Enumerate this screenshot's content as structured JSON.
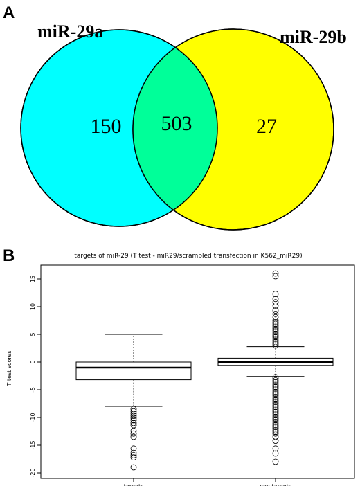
{
  "panels": {
    "a_letter": "A",
    "b_letter": "B"
  },
  "venn": {
    "set_a": {
      "label": "miR-29a",
      "only_count": "150",
      "color": "#00ffff"
    },
    "set_b": {
      "label": "miR-29b",
      "only_count": "27",
      "color": "#ffff00"
    },
    "overlap": {
      "count": "503",
      "color": "#00ff99"
    }
  },
  "chart_data": {
    "type": "boxplot",
    "title": "targets of miR-29 (T test - miR29/scrambled transfection in K562_miR29)",
    "xlabel": "",
    "ylabel": "T test scores",
    "ylim": [
      -20.5,
      17
    ],
    "yticks": [
      -20,
      -15,
      -10,
      -5,
      0,
      5,
      10,
      15
    ],
    "categories": [
      "targets",
      "non targets"
    ],
    "boxes": [
      {
        "name": "targets",
        "whisker_low": -8,
        "q1": -3.2,
        "median": -1,
        "q3": 0,
        "whisker_high": 5,
        "outliers": [
          -8.5,
          -8.9,
          -9.3,
          -9.7,
          -10.1,
          -10.5,
          -11,
          -11.4,
          -12.4,
          -12.9,
          -13.5,
          -15.6,
          -16.4,
          -16.8,
          -17.2,
          -19
        ]
      },
      {
        "name": "non targets",
        "whisker_low": -2.6,
        "q1": -0.6,
        "median": 0,
        "q3": 0.7,
        "whisker_high": 2.8,
        "outliers_high": [
          3,
          3.3,
          3.6,
          3.9,
          4.2,
          4.5,
          4.8,
          5.1,
          5.4,
          5.7,
          6,
          6.3,
          6.6,
          6.9,
          7.2,
          7.5,
          8.1,
          8.7,
          9.3,
          10.2,
          10.8,
          11.4,
          12.3,
          15.5,
          16
        ],
        "outliers_low": [
          -2.7,
          -3,
          -3.3,
          -3.6,
          -3.9,
          -4.2,
          -4.5,
          -4.8,
          -5.1,
          -5.4,
          -5.7,
          -6,
          -6.3,
          -6.6,
          -6.9,
          -7.2,
          -7.5,
          -7.8,
          -8.1,
          -8.4,
          -8.7,
          -9,
          -9.3,
          -9.6,
          -9.9,
          -10.2,
          -10.5,
          -10.8,
          -11.1,
          -11.4,
          -11.7,
          -12,
          -12.3,
          -12.6,
          -12.9,
          -13.5,
          -14.2,
          -15.6,
          -16.5,
          -18
        ]
      }
    ]
  }
}
